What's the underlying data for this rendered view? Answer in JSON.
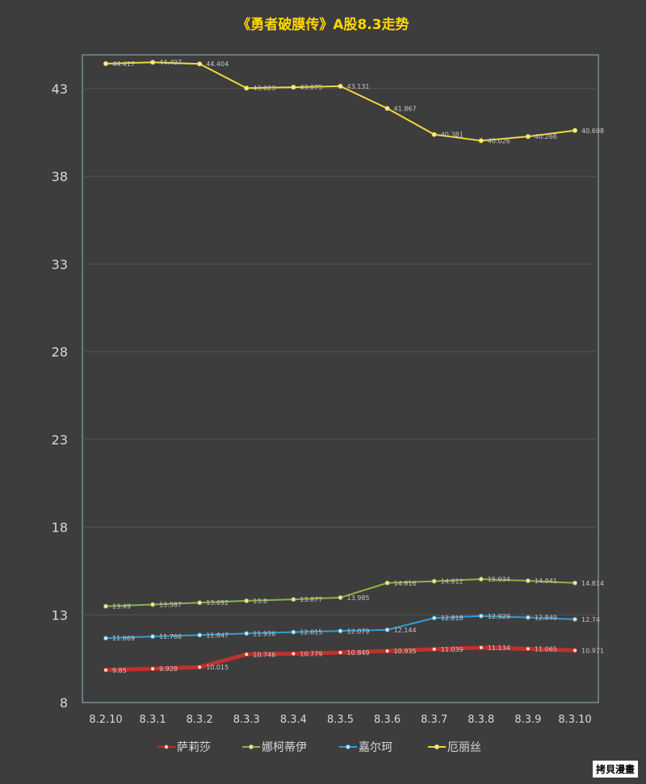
{
  "chart_data": {
    "type": "line",
    "title": "《勇者破膜传》A股8.3走势",
    "categories": [
      "8.2.10",
      "8.3.1",
      "8.3.2",
      "8.3.3",
      "8.3.4",
      "8.3.5",
      "8.3.6",
      "8.3.7",
      "8.3.8",
      "8.3.9",
      "8.3.10"
    ],
    "ylim": [
      8,
      44
    ],
    "yticks": [
      8,
      13,
      18,
      23,
      28,
      33,
      38,
      43
    ],
    "grid": true,
    "legend_position": "bottom",
    "series": [
      {
        "name": "萨莉莎",
        "color": "#c0302c",
        "values": [
          9.85,
          9.928,
          10.015,
          10.746,
          10.779,
          10.849,
          10.935,
          11.039,
          11.134,
          11.065,
          10.971
        ]
      },
      {
        "name": "娜柯蒂伊",
        "color": "#8cb444",
        "values": [
          13.49,
          13.587,
          13.692,
          13.8,
          13.877,
          13.985,
          14.816,
          14.912,
          15.034,
          14.941,
          14.814
        ]
      },
      {
        "name": "嘉尔珂",
        "color": "#2e9fd8",
        "values": [
          11.669,
          11.766,
          11.847,
          11.936,
          12.015,
          12.079,
          12.144,
          12.818,
          12.929,
          12.849,
          12.74
        ]
      },
      {
        "name": "厄丽丝",
        "color": "#f0d83a",
        "values": [
          44.417,
          44.497,
          44.404,
          43.023,
          43.075,
          43.131,
          41.867,
          40.381,
          40.026,
          40.266,
          40.608
        ]
      }
    ]
  },
  "watermark": "拷貝漫畫"
}
